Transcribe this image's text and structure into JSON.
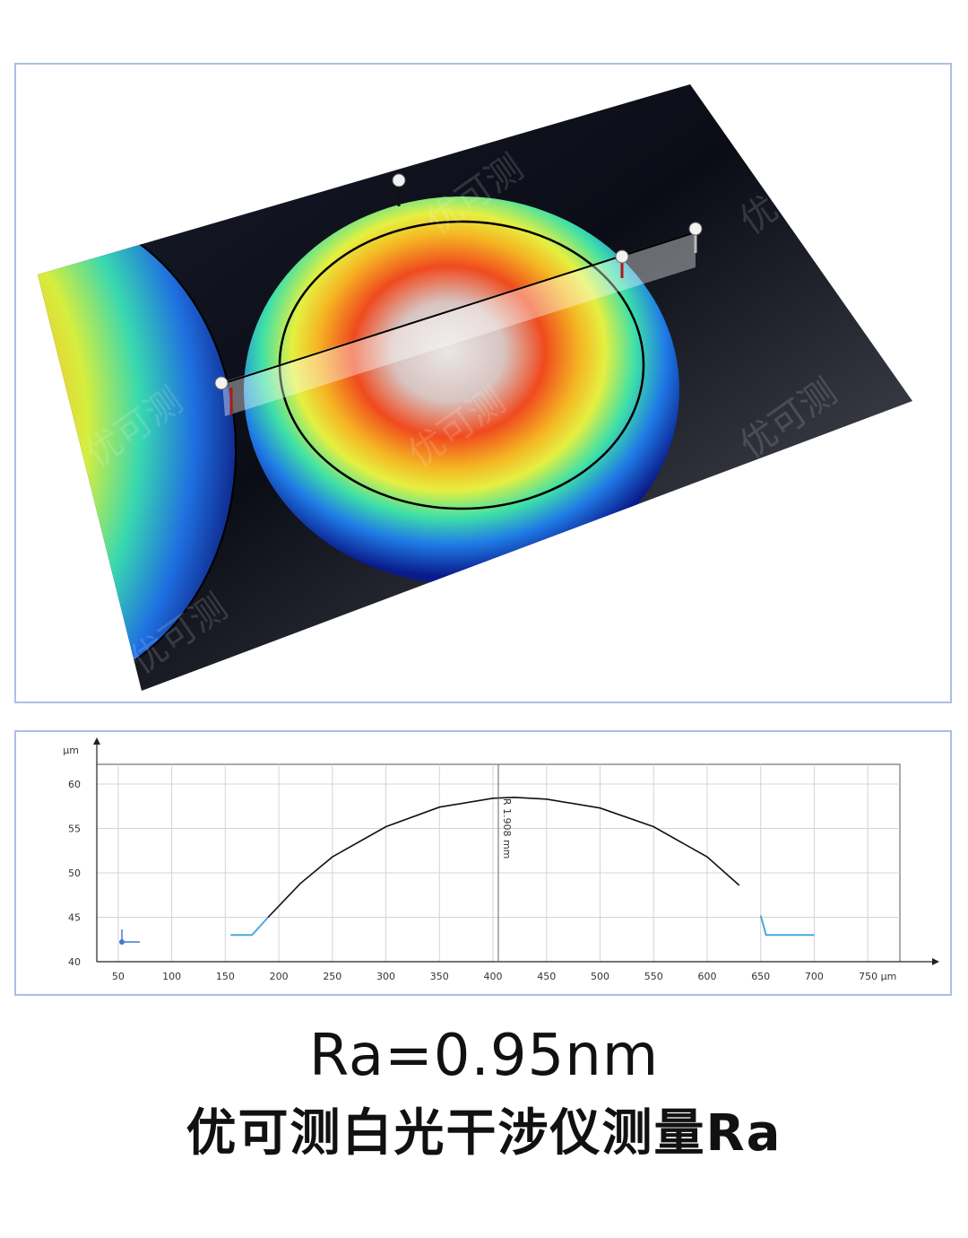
{
  "watermark": "优可测",
  "caption": {
    "line1": "Ra=0.95nm",
    "line2": "优可测白光干涉仪测量Ra"
  },
  "colors": {
    "panel_border": "#a9bfe6",
    "profile_line": "#111111",
    "profile_edge": "#4aa8e0",
    "surface_bg": "#0b0d18"
  },
  "chart_data": {
    "type": "line",
    "title": "",
    "xlabel": "",
    "ylabel": "",
    "x_unit": "µm",
    "y_unit": "µm",
    "xlim": [
      30,
      780
    ],
    "ylim": [
      40,
      62
    ],
    "x_ticks": [
      "50",
      "100",
      "150",
      "200",
      "250",
      "300",
      "350",
      "400",
      "450",
      "500",
      "550",
      "600",
      "650",
      "700",
      "750 µm"
    ],
    "y_ticks": [
      "40",
      "45",
      "50",
      "55",
      "60"
    ],
    "y_axis_unit_label": "µm",
    "annotation": "R 1.908 mm",
    "grid": true,
    "series": [
      {
        "points": [
          [
            155,
            43.0
          ],
          [
            175,
            43.0
          ],
          [
            190,
            45.0
          ],
          [
            220,
            48.8
          ],
          [
            250,
            51.8
          ],
          [
            300,
            55.2
          ],
          [
            350,
            57.4
          ],
          [
            400,
            58.4
          ],
          [
            420,
            58.5
          ],
          [
            450,
            58.3
          ],
          [
            500,
            57.3
          ],
          [
            550,
            55.2
          ],
          [
            600,
            51.8
          ],
          [
            630,
            48.6
          ],
          [
            650,
            45.2
          ],
          [
            655,
            43.0
          ],
          [
            700,
            43.0
          ]
        ]
      }
    ]
  }
}
